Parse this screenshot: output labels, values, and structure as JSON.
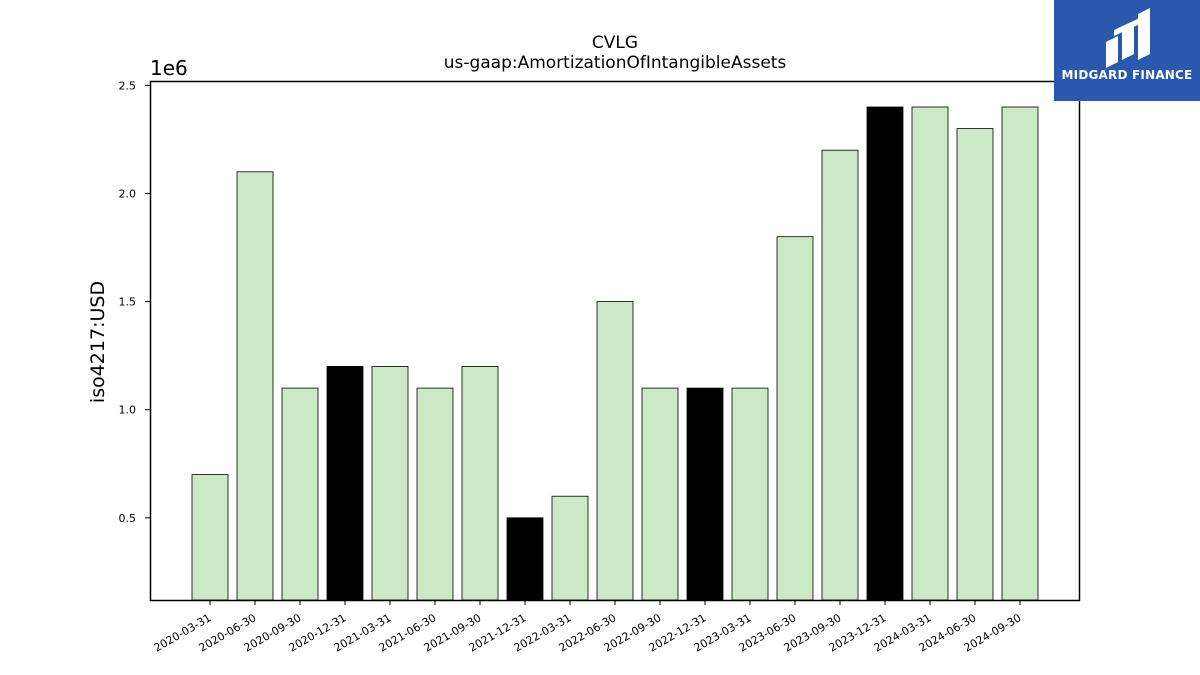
{
  "chart_data": {
    "type": "bar",
    "title": "CVLG",
    "subtitle": "us-gaap:AmortizationOfIntangibleAssets",
    "ylabel": "iso4217:USD",
    "xlabel": "",
    "y_offset_label": "1e6",
    "ylim": [
      0.12,
      2.52
    ],
    "yticks": [
      0.5,
      1.0,
      1.5,
      2.0,
      2.5
    ],
    "ytick_labels": [
      "0.5",
      "1.0",
      "1.5",
      "2.0",
      "2.5"
    ],
    "categories": [
      "2020-03-31",
      "2020-06-30",
      "2020-09-30",
      "2020-12-31",
      "2021-03-31",
      "2021-06-30",
      "2021-09-30",
      "2021-12-31",
      "2022-03-31",
      "2022-06-30",
      "2022-09-30",
      "2022-12-31",
      "2023-03-31",
      "2023-06-30",
      "2023-09-30",
      "2023-12-31",
      "2024-03-31",
      "2024-06-30",
      "2024-09-30"
    ],
    "values": [
      0.7,
      2.1,
      1.1,
      1.2,
      1.2,
      1.1,
      1.2,
      0.5,
      0.6,
      1.5,
      1.1,
      1.1,
      1.1,
      1.8,
      2.2,
      2.4,
      2.4,
      2.3,
      2.4
    ],
    "bar_colors": [
      "#cce9c6",
      "#cce9c6",
      "#cce9c6",
      "#000000",
      "#cce9c6",
      "#cce9c6",
      "#cce9c6",
      "#000000",
      "#cce9c6",
      "#cce9c6",
      "#cce9c6",
      "#000000",
      "#cce9c6",
      "#cce9c6",
      "#cce9c6",
      "#000000",
      "#cce9c6",
      "#cce9c6",
      "#cce9c6"
    ],
    "grid": false,
    "legend": "none"
  },
  "logo": {
    "text": "MIDGARD FINANCE",
    "color": "#2a58ad"
  }
}
